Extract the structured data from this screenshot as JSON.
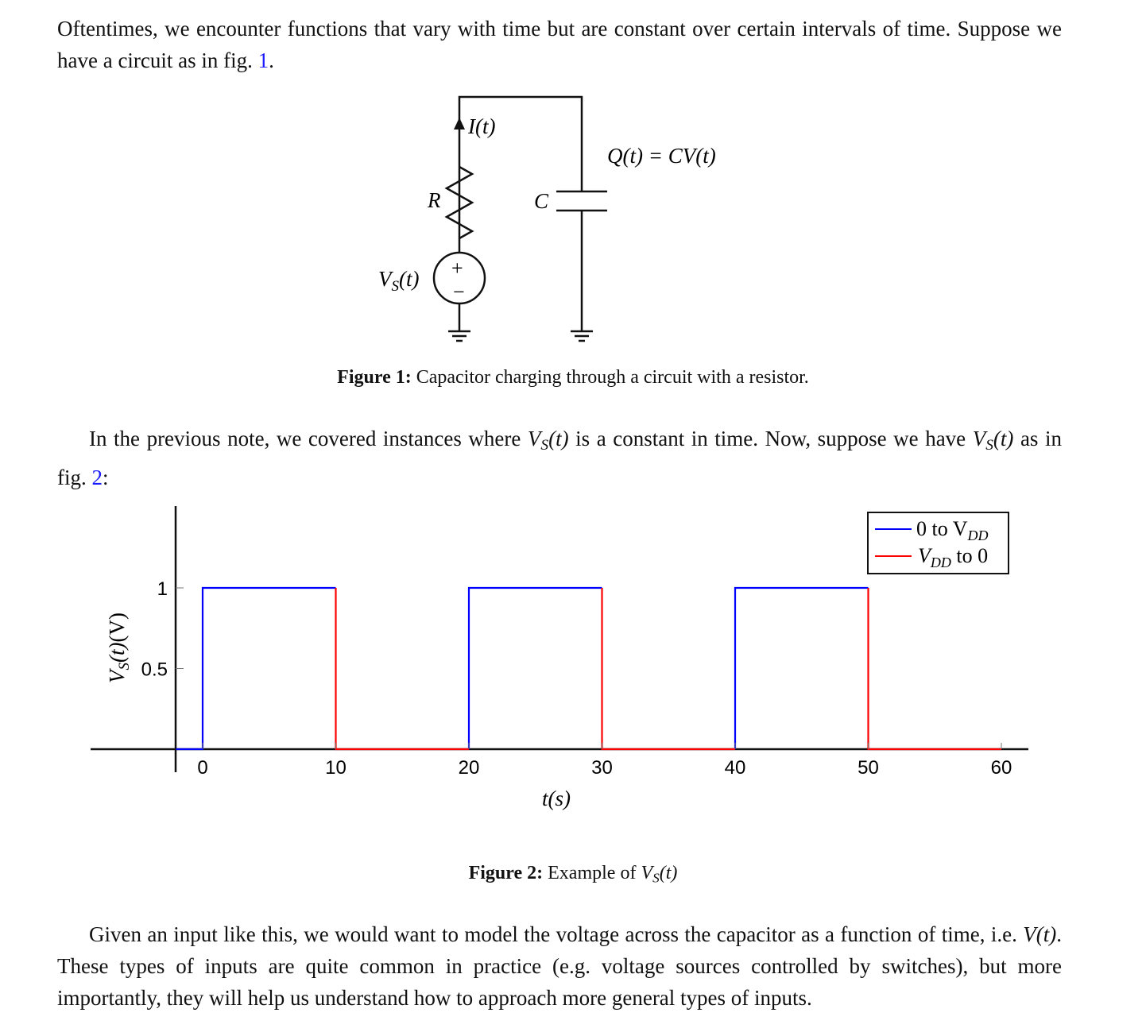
{
  "paragraphs": {
    "p1": {
      "text_a": "Oftentimes, we encounter functions that vary with time but are constant over certain intervals of time. Suppose we have a circuit as in fig. ",
      "ref": "1",
      "text_b": "."
    },
    "p2": {
      "text_a": "In the previous note, we covered instances where ",
      "var1": "V",
      "var1_sub": "S",
      "var1_arg": "(t)",
      "text_b": " is a constant in time. Now, suppose we have ",
      "var2": "V",
      "var2_sub": "S",
      "var2_arg": "(t)",
      "text_c": " as in fig. ",
      "ref": "2",
      "text_d": ":"
    },
    "p3": {
      "text_a": "Given an input like this, we would want to model the voltage across the capacitor as a function of time, i.e. ",
      "var": "V(t)",
      "text_b": ". These types of inputs are quite common in practice (e.g. voltage sources controlled by switches), but more importantly, they will help us understand how to approach more general types of inputs."
    }
  },
  "figure1": {
    "current_label": "I(t)",
    "charge_label": "Q(t) = CV(t)",
    "resistor_label": "R",
    "capacitor_label": "C",
    "source_label_main": "V",
    "source_label_sub": "S",
    "source_label_arg": "(t)",
    "plus_sign": "+",
    "minus_sign": "−",
    "caption_bold": "Figure 1:",
    "caption_text": " Capacitor charging through a circuit with a resistor."
  },
  "figure2": {
    "caption_bold": "Figure 2:",
    "caption_text": " Example of ",
    "caption_var": "V",
    "caption_sub": "S",
    "caption_arg": "(t)"
  },
  "chart_data": {
    "type": "line",
    "xlabel": "t(s)",
    "ylabel": "V_S(t)(V)",
    "xlim": [
      -2,
      62
    ],
    "ylim": [
      0,
      1.5
    ],
    "x_ticks": [
      "0",
      "10",
      "20",
      "30",
      "40",
      "50",
      "60"
    ],
    "x_tick_values": [
      0,
      10,
      20,
      30,
      40,
      50,
      60
    ],
    "y_ticks": [
      "0.5",
      "1"
    ],
    "y_tick_values": [
      0.5,
      1
    ],
    "grid": false,
    "legend_position": "top-right",
    "series": [
      {
        "name": "0 to V_DD",
        "legend_main": "0 to V",
        "legend_sub": "DD",
        "color": "#0000ff",
        "segments": [
          [
            [
              -2,
              0
            ],
            [
              0,
              0
            ],
            [
              0,
              1
            ],
            [
              10,
              1
            ]
          ],
          [
            [
              20,
              0
            ],
            [
              20,
              1
            ],
            [
              30,
              1
            ]
          ],
          [
            [
              40,
              0
            ],
            [
              40,
              1
            ],
            [
              50,
              1
            ]
          ]
        ]
      },
      {
        "name": "V_DD to 0",
        "legend_main": "V",
        "legend_sub": "DD",
        "legend_tail": " to 0",
        "color": "#ff0000",
        "segments": [
          [
            [
              10,
              1
            ],
            [
              10,
              0
            ],
            [
              20,
              0
            ]
          ],
          [
            [
              30,
              1
            ],
            [
              30,
              0
            ],
            [
              40,
              0
            ]
          ],
          [
            [
              50,
              1
            ],
            [
              50,
              0
            ],
            [
              60,
              0
            ]
          ]
        ]
      }
    ]
  }
}
